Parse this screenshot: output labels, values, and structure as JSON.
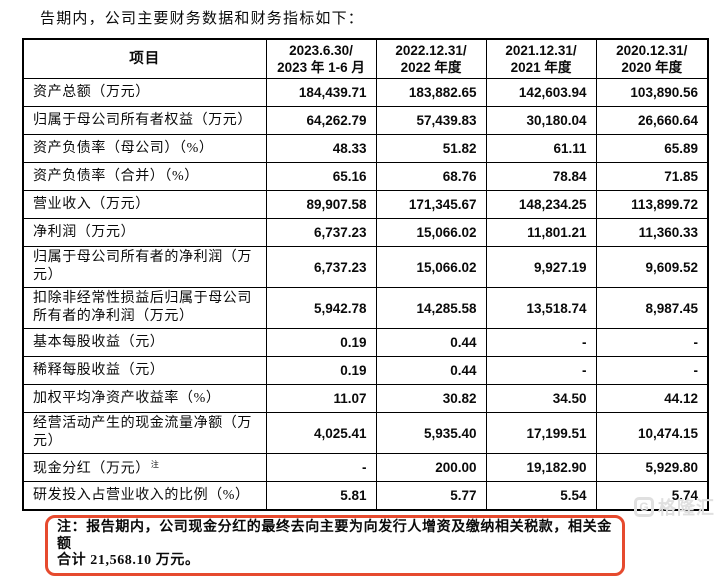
{
  "intro": {
    "text": "告期内，公司主要财务数据和财务指标如下："
  },
  "table": {
    "header": {
      "item_label": "项目",
      "periods": [
        {
          "line1": "2023.6.30/",
          "line2": "2023 年 1-6 月"
        },
        {
          "line1": "2022.12.31/",
          "line2": "2022 年度"
        },
        {
          "line1": "2021.12.31/",
          "line2": "2021 年度"
        },
        {
          "line1": "2020.12.31/",
          "line2": "2020 年度"
        }
      ]
    },
    "rows": [
      {
        "label": "资产总额（万元）",
        "values": [
          "184,439.71",
          "183,882.65",
          "142,603.94",
          "103,890.56"
        ]
      },
      {
        "label": "归属于母公司所有者权益（万元）",
        "values": [
          "64,262.79",
          "57,439.83",
          "30,180.04",
          "26,660.64"
        ]
      },
      {
        "label": "资产负债率（母公司）（%）",
        "values": [
          "48.33",
          "51.82",
          "61.11",
          "65.89"
        ]
      },
      {
        "label": "资产负债率（合并）（%）",
        "values": [
          "65.16",
          "68.76",
          "78.84",
          "71.85"
        ]
      },
      {
        "label": "营业收入（万元）",
        "values": [
          "89,907.58",
          "171,345.67",
          "148,234.25",
          "113,899.72"
        ]
      },
      {
        "label": "净利润（万元）",
        "values": [
          "6,737.23",
          "15,066.02",
          "11,801.21",
          "11,360.33"
        ]
      },
      {
        "label": "归属于母公司所有者的净利润（万元）",
        "values": [
          "6,737.23",
          "15,066.02",
          "9,927.19",
          "9,609.52"
        ]
      },
      {
        "label": "扣除非经常性损益后归属于母公司所有者的净利润（万元）",
        "values": [
          "5,942.78",
          "14,285.58",
          "13,518.74",
          "8,987.45"
        ]
      },
      {
        "label": "基本每股收益（元）",
        "values": [
          "0.19",
          "0.44",
          "-",
          "-"
        ]
      },
      {
        "label": "稀释每股收益（元）",
        "values": [
          "0.19",
          "0.44",
          "-",
          "-"
        ]
      },
      {
        "label": "加权平均净资产收益率（%）",
        "values": [
          "11.07",
          "30.82",
          "34.50",
          "44.12"
        ]
      },
      {
        "label": "经营活动产生的现金流量净额（万元）",
        "values": [
          "4,025.41",
          "5,935.40",
          "17,199.51",
          "10,474.15"
        ]
      },
      {
        "label": "现金分红（万元）",
        "superscript": "注",
        "values": [
          "-",
          "200.00",
          "19,182.90",
          "5,929.80"
        ]
      },
      {
        "label": "研发投入占营业收入的比例（%）",
        "values": [
          "5.81",
          "5.77",
          "5.54",
          "5.74"
        ]
      }
    ]
  },
  "note": {
    "lines": [
      "注：报告期内，公司现金分红的最终去向主要为向发行人增资及缴纳相关税款，相关金额",
      "合计 21,568.10 万元。"
    ],
    "border_color": "#e64a2e"
  },
  "watermark": {
    "icon": "G",
    "text": "格隆汇",
    "color": "#e0e0e0"
  }
}
